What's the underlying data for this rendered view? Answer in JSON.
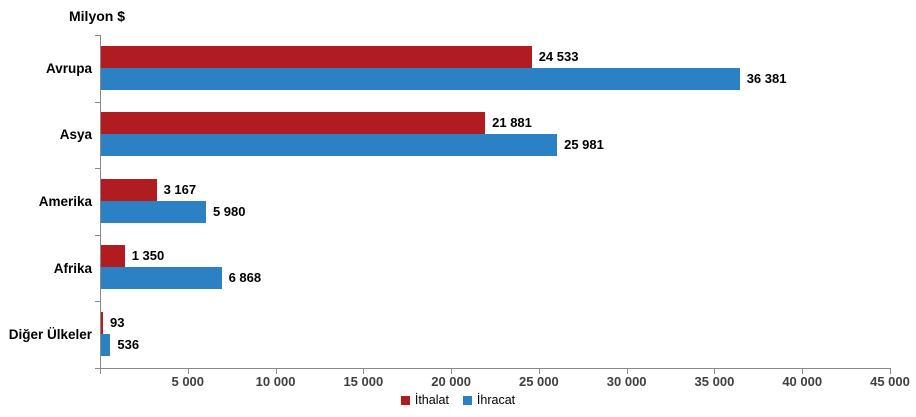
{
  "title": "Milyon $",
  "legend": {
    "items": [
      {
        "label": "İthalat",
        "color": "#b01c20"
      },
      {
        "label": "İhracat",
        "color": "#2c81c5"
      }
    ]
  },
  "chart_data": {
    "type": "bar",
    "orientation": "horizontal",
    "title": "Milyon $",
    "xlabel": "",
    "ylabel": "",
    "categories": [
      "Avrupa",
      "Asya",
      "Amerika",
      "Afrika",
      "Diğer Ülkeler"
    ],
    "series": [
      {
        "name": "İthalat",
        "color": "#b01c20",
        "values": [
          24533,
          21881,
          3167,
          1350,
          93
        ],
        "value_labels": [
          "24 533",
          "21 881",
          "3 167",
          "1 350",
          "93"
        ]
      },
      {
        "name": "İhracat",
        "color": "#2c81c5",
        "values": [
          36381,
          25981,
          5980,
          6868,
          536
        ],
        "value_labels": [
          "36 381",
          "25 981",
          "5 980",
          "6 868",
          "536"
        ]
      }
    ],
    "xlim": [
      0,
      45000
    ],
    "x_ticks": [
      5000,
      10000,
      15000,
      20000,
      25000,
      30000,
      35000,
      40000,
      45000
    ],
    "x_tick_labels": [
      "5 000",
      "10 000",
      "15 000",
      "20 000",
      "25 000",
      "30 000",
      "35 000",
      "40 000",
      "45 000"
    ],
    "grid": false,
    "legend_position": "bottom-center",
    "axis_color": "#898989",
    "background_color": "#ffffff"
  }
}
